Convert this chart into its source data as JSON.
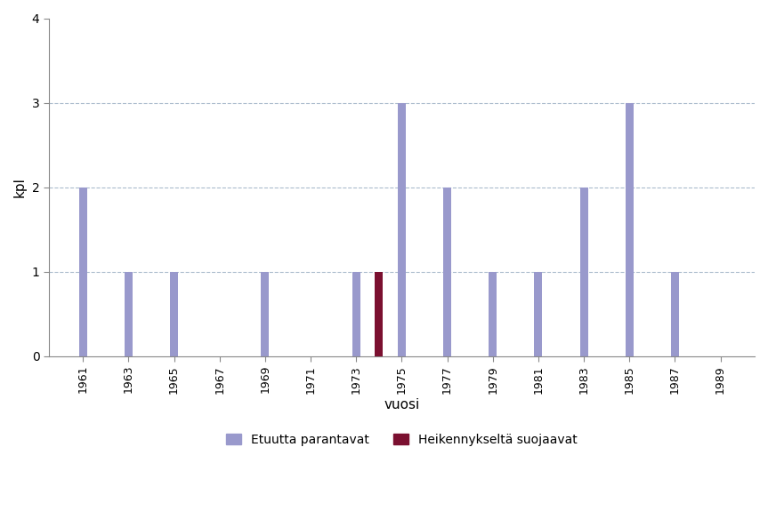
{
  "years": [
    1961,
    1962,
    1963,
    1964,
    1965,
    1966,
    1967,
    1968,
    1969,
    1970,
    1971,
    1972,
    1973,
    1974,
    1975,
    1976,
    1977,
    1978,
    1979,
    1980,
    1981,
    1982,
    1983,
    1984,
    1985,
    1986,
    1987,
    1988,
    1989
  ],
  "blue_values": [
    2,
    0,
    1,
    0,
    1,
    0,
    0,
    0,
    1,
    0,
    0,
    0,
    1,
    0,
    3,
    0,
    2,
    0,
    1,
    0,
    1,
    0,
    2,
    0,
    3,
    0,
    1,
    0,
    0
  ],
  "red_values": [
    0,
    0,
    0,
    0,
    0,
    0,
    0,
    0,
    0,
    0,
    0,
    0,
    0,
    1,
    0,
    0,
    0,
    0,
    0,
    0,
    0,
    0,
    0,
    0,
    0,
    0,
    0,
    0,
    0
  ],
  "blue_color": "#9999cc",
  "red_color": "#7b1030",
  "ylabel": "kpl",
  "xlabel": "vuosi",
  "ylim": [
    0,
    4
  ],
  "yticks": [
    0,
    1,
    2,
    3,
    4
  ],
  "grid_yticks": [
    1,
    2,
    3
  ],
  "xtick_labels": [
    "1961",
    "1963",
    "1965",
    "1967",
    "1969",
    "1971",
    "1973",
    "1975",
    "1977",
    "1979",
    "1981",
    "1983",
    "1985",
    "1987",
    "1989"
  ],
  "legend_blue": "Etuutta parantavat",
  "legend_red": "Heikennykseltä suojaavat",
  "bar_width": 0.35,
  "grid_color": "#aabbcc",
  "background_color": "#ffffff"
}
